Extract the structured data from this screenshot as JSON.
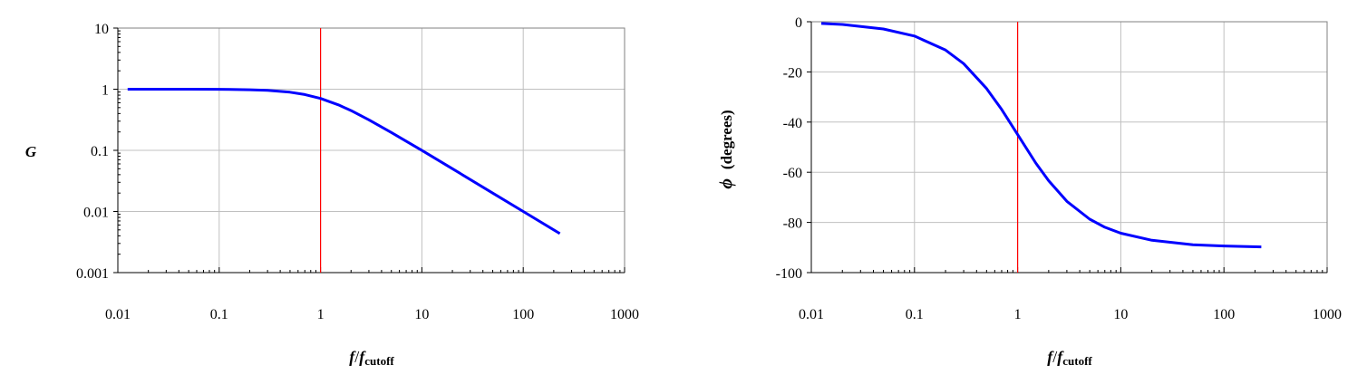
{
  "chart_data": [
    {
      "type": "line",
      "x_scale": "log",
      "y_scale": "log",
      "xlim": [
        0.01,
        1000
      ],
      "ylim": [
        0.001,
        10
      ],
      "x_ticks": [
        "0.01",
        "0.1",
        "1",
        "10",
        "100",
        "1000"
      ],
      "y_ticks": [
        "0.001",
        "0.01",
        "0.1",
        "1",
        "10"
      ],
      "ylabel": "G",
      "xlabel_main": "f",
      "xlabel_slash": "/",
      "xlabel_f": "f",
      "xlabel_sub": "cutoff",
      "grid": true,
      "vline_x": 1,
      "colors": {
        "curve": "#0000ff",
        "vline": "#ff0000",
        "grid": "#c0c0c0"
      },
      "series": [
        {
          "x": [
            0.0125,
            0.02,
            0.05,
            0.1,
            0.2,
            0.3,
            0.5,
            0.7,
            1,
            1.5,
            2,
            3,
            5,
            7,
            10,
            20,
            50,
            100,
            230
          ],
          "y": [
            1.0,
            1.0,
            0.999,
            0.995,
            0.981,
            0.958,
            0.894,
            0.819,
            0.707,
            0.555,
            0.447,
            0.316,
            0.196,
            0.141,
            0.0995,
            0.05,
            0.02,
            0.01,
            0.00435
          ]
        }
      ]
    },
    {
      "type": "line",
      "x_scale": "log",
      "y_scale": "linear",
      "xlim": [
        0.01,
        1000
      ],
      "ylim": [
        -100,
        0
      ],
      "x_ticks": [
        "0.01",
        "0.1",
        "1",
        "10",
        "100",
        "1000"
      ],
      "y_ticks": [
        "0",
        "-20",
        "-40",
        "-60",
        "-80",
        "-100"
      ],
      "ylabel_symbol": "ϕ",
      "ylabel": "(degrees)",
      "xlabel_main": "f",
      "xlabel_slash": "/",
      "xlabel_f": "f",
      "xlabel_sub": "cutoff",
      "grid": true,
      "vline_x": 1,
      "colors": {
        "curve": "#0000ff",
        "vline": "#ff0000",
        "grid": "#c0c0c0"
      },
      "series": [
        {
          "x": [
            0.0125,
            0.02,
            0.05,
            0.1,
            0.2,
            0.3,
            0.5,
            0.7,
            1,
            1.5,
            2,
            3,
            5,
            7,
            10,
            20,
            50,
            100,
            230
          ],
          "y": [
            -0.7,
            -1.1,
            -2.9,
            -5.7,
            -11.3,
            -16.7,
            -26.6,
            -35.0,
            -45.0,
            -56.3,
            -63.4,
            -71.6,
            -78.7,
            -81.9,
            -84.3,
            -87.1,
            -88.9,
            -89.4,
            -89.75
          ]
        }
      ]
    }
  ]
}
